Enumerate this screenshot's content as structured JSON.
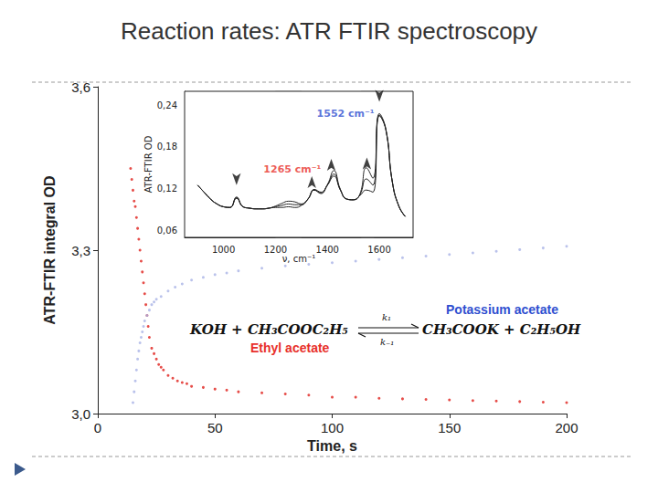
{
  "chart_data": [
    {
      "type": "scatter",
      "title": "Reaction rates: ATR FTIR spectroscopy",
      "x_label": "Time, s",
      "y_label": "ATR-FTIR integral OD",
      "xlim": [
        0,
        200
      ],
      "xticks": [
        0,
        50,
        100,
        150,
        200
      ],
      "ylim": [
        3.0,
        3.6
      ],
      "yticks": [
        {
          "value": 3.0,
          "label": "3,0"
        },
        {
          "value": 3.3,
          "label": "3,3"
        },
        {
          "value": 3.6,
          "label": "3,6"
        }
      ],
      "grid": false,
      "series": [
        {
          "color": "#e0201b",
          "marker": "circle",
          "x": [
            14,
            14.5,
            15,
            15.5,
            16,
            16.5,
            17,
            17.5,
            18,
            18.5,
            19,
            19.5,
            20,
            20.5,
            21,
            21.5,
            22,
            23,
            24,
            25,
            26,
            27,
            28,
            30,
            32,
            34,
            36,
            38,
            40,
            45,
            50,
            55,
            60,
            70,
            80,
            90,
            100,
            110,
            120,
            130,
            140,
            150,
            160,
            170,
            180,
            190,
            200
          ],
          "values": [
            3.45,
            3.43,
            3.41,
            3.39,
            3.38,
            3.36,
            3.34,
            3.32,
            3.3,
            3.28,
            3.26,
            3.24,
            3.22,
            3.2,
            3.18,
            3.16,
            3.14,
            3.12,
            3.11,
            3.1,
            3.09,
            3.085,
            3.08,
            3.07,
            3.065,
            3.06,
            3.057,
            3.055,
            3.05,
            3.048,
            3.045,
            3.043,
            3.04,
            3.038,
            3.036,
            3.034,
            3.03,
            3.03,
            3.028,
            3.027,
            3.026,
            3.025,
            3.024,
            3.023,
            3.022,
            3.021,
            3.02
          ]
        },
        {
          "color": "#a9b3e6",
          "marker": "circle",
          "x": [
            15,
            15.5,
            16,
            16.5,
            17,
            17.5,
            18,
            18.5,
            19,
            19.5,
            20,
            21,
            22,
            23,
            24,
            25,
            27,
            30,
            33,
            36,
            40,
            45,
            50,
            55,
            60,
            70,
            80,
            90,
            100,
            110,
            120,
            130,
            140,
            150,
            160,
            170,
            180,
            190,
            200
          ],
          "values": [
            3.02,
            3.04,
            3.06,
            3.08,
            3.1,
            3.115,
            3.13,
            3.14,
            3.15,
            3.16,
            3.17,
            3.18,
            3.19,
            3.2,
            3.205,
            3.21,
            3.215,
            3.225,
            3.232,
            3.238,
            3.245,
            3.25,
            3.255,
            3.258,
            3.262,
            3.267,
            3.271,
            3.274,
            3.277,
            3.28,
            3.283,
            3.286,
            3.289,
            3.292,
            3.295,
            3.298,
            3.301,
            3.304,
            3.307
          ]
        }
      ],
      "equation": {
        "left": "KOH + CH₃COOC₂H₅",
        "right": "CH₃COOK + C₂H₅OH",
        "forward": "k₁",
        "backward": "k₋₁"
      },
      "annotations": [
        {
          "text": "Potassium acetate",
          "color": "#2f4fd0"
        },
        {
          "text": "Ethyl acetate",
          "color": "#e8302a"
        }
      ]
    },
    {
      "type": "line",
      "x_label": "ν, cm⁻¹",
      "y_label": "ATR-FTIR OD",
      "xlim": [
        850,
        1730
      ],
      "xticks": [
        1000,
        1200,
        1400,
        1600
      ],
      "ylim": [
        0.05,
        0.26
      ],
      "yticks": [
        {
          "value": 0.06,
          "label": "0,06"
        },
        {
          "value": 0.12,
          "label": "0,12"
        },
        {
          "value": 0.18,
          "label": "0,18"
        },
        {
          "value": 0.24,
          "label": "0,24"
        }
      ],
      "grid": false,
      "x": [
        900,
        925,
        950,
        975,
        1000,
        1025,
        1050,
        1075,
        1100,
        1125,
        1150,
        1175,
        1200,
        1225,
        1250,
        1275,
        1300,
        1325,
        1350,
        1375,
        1400,
        1425,
        1450,
        1475,
        1500,
        1525,
        1550,
        1575,
        1600,
        1625,
        1650,
        1675,
        1700
      ],
      "series": [
        {
          "color": "#222222",
          "values": [
            0.125,
            0.115,
            0.105,
            0.098,
            0.094,
            0.093,
            0.108,
            0.094,
            0.092,
            0.091,
            0.091,
            0.092,
            0.095,
            0.099,
            0.102,
            0.101,
            0.098,
            0.105,
            0.118,
            0.113,
            0.125,
            0.138,
            0.118,
            0.105,
            0.104,
            0.11,
            0.118,
            0.115,
            0.225,
            0.205,
            0.13,
            0.095,
            0.08
          ]
        },
        {
          "color": "#222222",
          "values": [
            0.125,
            0.115,
            0.105,
            0.098,
            0.094,
            0.093,
            0.107,
            0.094,
            0.092,
            0.091,
            0.091,
            0.092,
            0.094,
            0.096,
            0.098,
            0.097,
            0.097,
            0.105,
            0.118,
            0.114,
            0.125,
            0.141,
            0.118,
            0.105,
            0.104,
            0.111,
            0.134,
            0.125,
            0.226,
            0.205,
            0.13,
            0.095,
            0.08
          ]
        },
        {
          "color": "#222222",
          "values": [
            0.125,
            0.115,
            0.105,
            0.098,
            0.094,
            0.093,
            0.106,
            0.094,
            0.092,
            0.091,
            0.091,
            0.092,
            0.093,
            0.093,
            0.094,
            0.093,
            0.096,
            0.105,
            0.119,
            0.115,
            0.126,
            0.146,
            0.119,
            0.105,
            0.104,
            0.112,
            0.15,
            0.135,
            0.228,
            0.206,
            0.13,
            0.095,
            0.08
          ]
        }
      ],
      "bands": [
        [
          1200,
          1300
        ],
        [
          1530,
          1580
        ]
      ],
      "annotations": [
        {
          "text": "1265 cm⁻¹",
          "color": "#e8302a",
          "x": 1265,
          "y": 0.148
        },
        {
          "text": "1552 cm⁻¹",
          "color": "#2f4fd0",
          "x": 1470,
          "y": 0.228
        }
      ],
      "arrows": [
        {
          "x": 1050,
          "y": 0.125,
          "direction": "down"
        },
        {
          "x": 1340,
          "y": 0.138,
          "direction": "up"
        },
        {
          "x": 1415,
          "y": 0.163,
          "direction": "up"
        },
        {
          "x": 1552,
          "y": 0.165,
          "direction": "up"
        },
        {
          "x": 1600,
          "y": 0.245,
          "direction": "down"
        }
      ]
    }
  ]
}
